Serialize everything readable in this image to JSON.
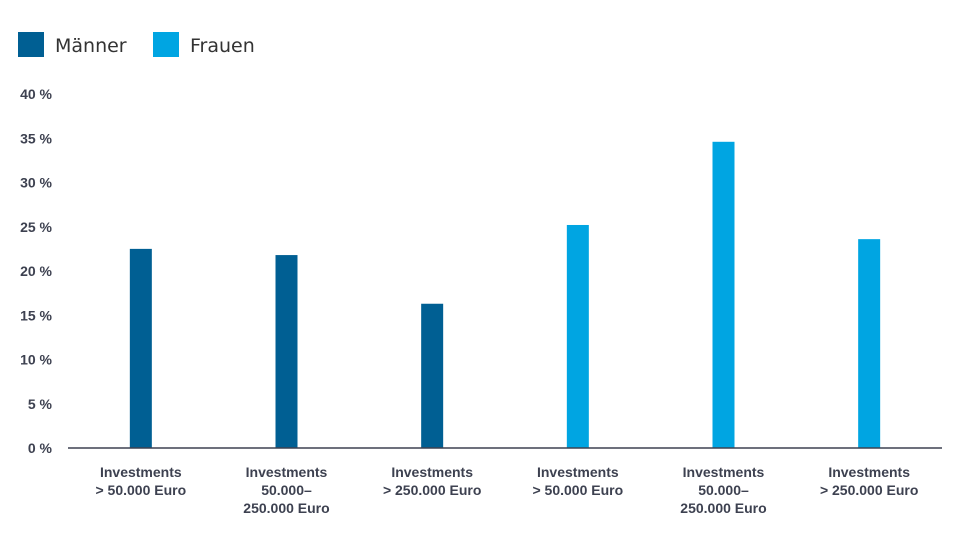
{
  "chart_data": {
    "type": "bar",
    "title": "",
    "xlabel": "",
    "ylabel": "",
    "ylim": [
      0,
      40
    ],
    "yticks": [
      0,
      5,
      10,
      15,
      20,
      25,
      30,
      35,
      40
    ],
    "ytick_suffix": " %",
    "grid": false,
    "legend_position": "top-left",
    "categories": [
      [
        "Investments",
        "> 50.000 Euro"
      ],
      [
        "Investments",
        "50.000–",
        "250.000 Euro"
      ],
      [
        "Investments",
        "> 250.000 Euro"
      ],
      [
        "Investments",
        "> 50.000 Euro"
      ],
      [
        "Investments",
        "50.000–",
        "250.000 Euro"
      ],
      [
        "Investments",
        "> 250.000 Euro"
      ]
    ],
    "series": [
      {
        "name": "Männer",
        "color": "#005f93",
        "values": [
          22.5,
          21.8,
          16.3,
          null,
          null,
          null
        ]
      },
      {
        "name": "Frauen",
        "color": "#00a5e2",
        "values": [
          null,
          null,
          null,
          25.2,
          34.6,
          23.6
        ]
      }
    ]
  }
}
